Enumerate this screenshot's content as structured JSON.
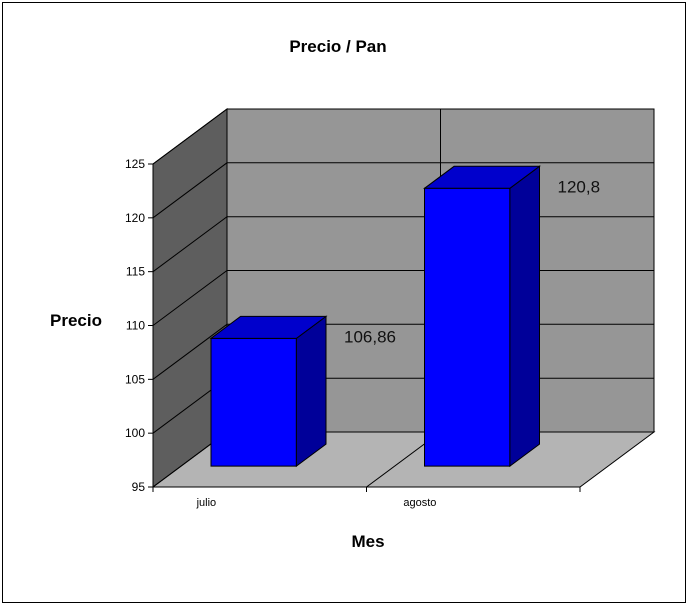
{
  "chart_data": {
    "type": "bar",
    "style": "3d-column",
    "title": "Precio / Pan",
    "xlabel": "Mes",
    "ylabel": "Precio",
    "categories": [
      "julio",
      "agosto"
    ],
    "values": [
      106.86,
      120.8
    ],
    "data_labels": [
      "106,86",
      "120,8"
    ],
    "ylim": [
      95,
      125
    ],
    "yticks": [
      "95",
      "100",
      "105",
      "110",
      "115",
      "120",
      "125"
    ],
    "grid": true,
    "legend": "none",
    "colors": {
      "bar_front": "#0000ff",
      "bar_side": "#000099",
      "bar_top": "#0000cc",
      "back_wall": "#969696",
      "side_wall": "#5e5e5e",
      "floor": "#b4b4b4"
    }
  }
}
